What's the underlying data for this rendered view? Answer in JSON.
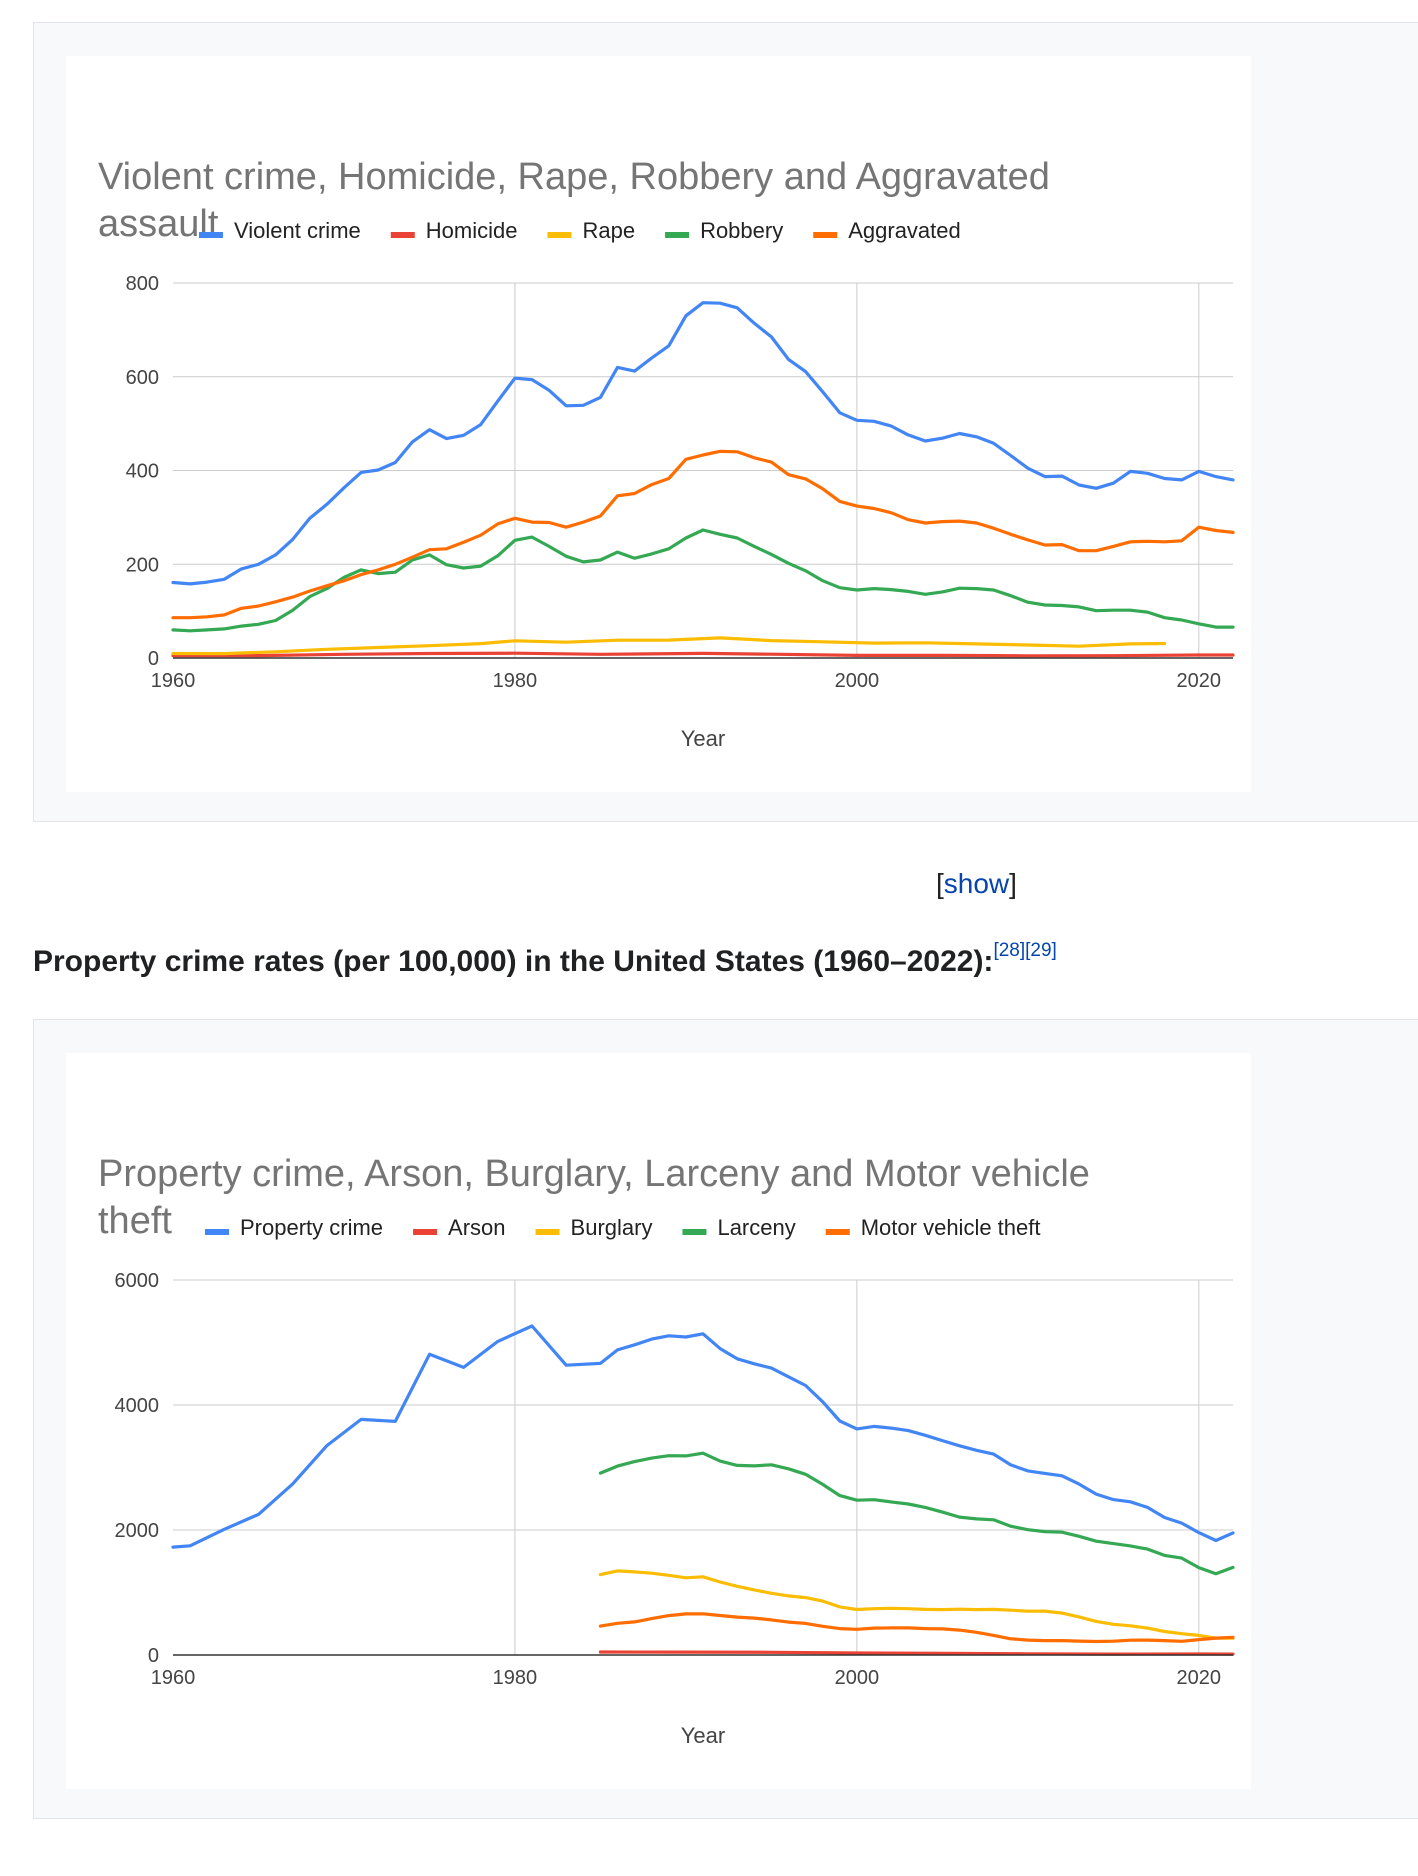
{
  "chart_data": [
    {
      "type": "line",
      "title_lines": [
        "Violent crime, Homicide, Rape, Robbery and Aggravated",
        "assault"
      ],
      "xlabel": "Year",
      "ylabel": "",
      "xlim": [
        1960,
        2022
      ],
      "ylim": [
        0,
        800
      ],
      "x_ticks": [
        "1960",
        "1980",
        "2000",
        "2020"
      ],
      "y_ticks": [
        "0",
        "200",
        "400",
        "600",
        "800"
      ],
      "grid": true,
      "legend_position": "top",
      "series": [
        {
          "name": "Violent crime",
          "color": "#4285f4",
          "x": [
            1960,
            1961,
            1962,
            1963,
            1964,
            1965,
            1966,
            1967,
            1968,
            1969,
            1970,
            1971,
            1972,
            1973,
            1974,
            1975,
            1976,
            1977,
            1978,
            1979,
            1980,
            1981,
            1982,
            1983,
            1984,
            1985,
            1986,
            1987,
            1988,
            1989,
            1990,
            1991,
            1992,
            1993,
            1994,
            1995,
            1996,
            1997,
            1998,
            1999,
            2000,
            2001,
            2002,
            2003,
            2004,
            2005,
            2006,
            2007,
            2008,
            2009,
            2010,
            2011,
            2012,
            2013,
            2014,
            2015,
            2016,
            2017,
            2018,
            2019,
            2020,
            2021,
            2022
          ],
          "values": [
            161,
            158,
            162,
            168,
            190,
            200,
            220,
            253,
            298,
            328,
            363,
            396,
            401,
            417,
            461,
            487,
            468,
            475,
            498,
            548,
            597,
            594,
            571,
            538,
            539,
            556,
            620,
            612,
            640,
            666,
            730,
            758,
            757,
            747,
            714,
            685,
            637,
            611,
            568,
            523,
            507,
            505,
            495,
            476,
            463,
            469,
            479,
            472,
            458,
            432,
            405,
            387,
            388,
            369,
            362,
            373,
            398,
            394,
            383,
            380,
            398,
            387,
            380
          ]
        },
        {
          "name": "Homicide",
          "color": "#ea4335",
          "x": [
            1960,
            1965,
            1970,
            1975,
            1980,
            1985,
            1991,
            1995,
            2000,
            2005,
            2010,
            2015,
            2020,
            2022
          ],
          "values": [
            5.1,
            5.1,
            7.9,
            9.6,
            10.2,
            7.9,
            9.8,
            8.2,
            5.5,
            5.6,
            4.8,
            4.9,
            6.5,
            6.3
          ]
        },
        {
          "name": "Rape",
          "color": "#fbbc04",
          "x": [
            1960,
            1963,
            1966,
            1969,
            1972,
            1975,
            1978,
            1980,
            1983,
            1986,
            1989,
            1992,
            1995,
            1998,
            2001,
            2004,
            2007,
            2010,
            2013,
            2016,
            2018
          ],
          "values": [
            9.6,
            9.4,
            13.2,
            18.5,
            22.5,
            26.3,
            30.8,
            36.8,
            33.7,
            37.9,
            38.1,
            42.8,
            37.1,
            34.5,
            31.8,
            32.4,
            30.0,
            27.7,
            25.2,
            30.0,
            30.9
          ]
        },
        {
          "name": "Robbery",
          "color": "#34a853",
          "x": [
            1960,
            1961,
            1962,
            1963,
            1964,
            1965,
            1966,
            1967,
            1968,
            1969,
            1970,
            1971,
            1972,
            1973,
            1974,
            1975,
            1976,
            1977,
            1978,
            1979,
            1980,
            1981,
            1982,
            1983,
            1984,
            1985,
            1986,
            1987,
            1988,
            1989,
            1990,
            1991,
            1992,
            1993,
            1994,
            1995,
            1996,
            1997,
            1998,
            1999,
            2000,
            2001,
            2002,
            2003,
            2004,
            2005,
            2006,
            2007,
            2008,
            2009,
            2010,
            2011,
            2012,
            2013,
            2014,
            2015,
            2016,
            2017,
            2018,
            2019,
            2020,
            2021,
            2022
          ],
          "values": [
            60,
            58,
            60,
            62,
            68,
            72,
            80,
            102,
            131,
            148,
            172,
            188,
            180,
            183,
            209,
            220,
            199,
            192,
            196,
            218,
            251,
            258,
            238,
            217,
            205,
            209,
            226,
            213,
            222,
            233,
            256,
            273,
            264,
            256,
            238,
            221,
            202,
            186,
            165,
            150,
            145,
            148,
            146,
            142,
            136,
            141,
            149,
            148,
            145,
            133,
            119,
            113,
            112,
            109,
            101,
            102,
            102,
            98,
            86,
            81,
            73,
            66,
            66
          ]
        },
        {
          "name": "Aggravated",
          "color": "#ff6d01",
          "x": [
            1960,
            1961,
            1962,
            1963,
            1964,
            1965,
            1966,
            1967,
            1968,
            1969,
            1970,
            1971,
            1972,
            1973,
            1974,
            1975,
            1976,
            1977,
            1978,
            1979,
            1980,
            1981,
            1982,
            1983,
            1984,
            1985,
            1986,
            1987,
            1988,
            1989,
            1990,
            1991,
            1992,
            1993,
            1994,
            1995,
            1996,
            1997,
            1998,
            1999,
            2000,
            2001,
            2002,
            2003,
            2004,
            2005,
            2006,
            2007,
            2008,
            2009,
            2010,
            2011,
            2012,
            2013,
            2014,
            2015,
            2016,
            2017,
            2018,
            2019,
            2020,
            2021,
            2022
          ],
          "values": [
            86,
            86,
            88,
            92,
            106,
            111,
            120,
            130,
            143,
            154,
            165,
            178,
            188,
            200,
            215,
            231,
            233,
            247,
            262,
            286,
            298,
            290,
            289,
            279,
            290,
            303,
            346,
            351,
            370,
            383,
            424,
            433,
            441,
            440,
            427,
            418,
            391,
            382,
            361,
            334,
            324,
            319,
            310,
            295,
            288,
            291,
            292,
            288,
            277,
            264,
            252,
            241,
            242,
            229,
            229,
            238,
            248,
            249,
            248,
            250,
            279,
            272,
            268
          ]
        }
      ]
    },
    {
      "type": "line",
      "title_lines": [
        "Property crime, Arson, Burglary, Larceny and Motor vehicle",
        "theft"
      ],
      "xlabel": "Year",
      "ylabel": "",
      "xlim": [
        1960,
        2022
      ],
      "ylim": [
        0,
        6000
      ],
      "x_ticks": [
        "1960",
        "1980",
        "2000",
        "2020"
      ],
      "y_ticks": [
        "0",
        "2000",
        "4000",
        "6000"
      ],
      "grid": true,
      "legend_position": "top",
      "series": [
        {
          "name": "Property crime",
          "color": "#4285f4",
          "x": [
            1960,
            1961,
            1963,
            1965,
            1967,
            1969,
            1971,
            1973,
            1975,
            1977,
            1979,
            1981,
            1983,
            1985,
            1986,
            1987,
            1988,
            1989,
            1990,
            1991,
            1992,
            1993,
            1994,
            1995,
            1996,
            1997,
            1998,
            1999,
            2000,
            2001,
            2002,
            2003,
            2004,
            2005,
            2006,
            2007,
            2008,
            2009,
            2010,
            2011,
            2012,
            2013,
            2014,
            2015,
            2016,
            2017,
            2018,
            2019,
            2020,
            2021,
            2022
          ],
          "values": [
            1726,
            1747,
            2012,
            2249,
            2737,
            3351,
            3769,
            3738,
            4811,
            4601,
            5017,
            5264,
            4637,
            4666,
            4881,
            4963,
            5054,
            5107,
            5088,
            5140,
            4903,
            4740,
            4660,
            4591,
            4451,
            4312,
            4052,
            3744,
            3618,
            3658,
            3631,
            3591,
            3515,
            3431,
            3347,
            3276,
            3214,
            3041,
            2946,
            2905,
            2868,
            2734,
            2574,
            2487,
            2451,
            2362,
            2200,
            2110,
            1958,
            1832,
            1954
          ]
        },
        {
          "name": "Arson",
          "color": "#ea4335",
          "x": [
            1985,
            1990,
            1995,
            2000,
            2005,
            2010,
            2015,
            2020,
            2022
          ],
          "values": [
            48,
            46,
            43,
            32,
            25,
            20,
            15,
            16,
            14
          ]
        },
        {
          "name": "Burglary",
          "color": "#fbbc04",
          "x": [
            1985,
            1986,
            1987,
            1988,
            1989,
            1990,
            1991,
            1992,
            1993,
            1994,
            1995,
            1996,
            1997,
            1998,
            1999,
            2000,
            2001,
            2002,
            2003,
            2004,
            2005,
            2006,
            2007,
            2008,
            2009,
            2010,
            2011,
            2012,
            2013,
            2014,
            2015,
            2016,
            2017,
            2018,
            2019,
            2020,
            2021,
            2022
          ],
          "values": [
            1287,
            1345,
            1330,
            1309,
            1276,
            1236,
            1252,
            1168,
            1099,
            1042,
            987,
            945,
            919,
            863,
            770,
            728,
            741,
            747,
            741,
            730,
            726,
            733,
            726,
            730,
            717,
            701,
            702,
            670,
            610,
            537,
            491,
            468,
            430,
            376,
            341,
            314,
            270,
            269
          ]
        },
        {
          "name": "Larceny",
          "color": "#34a853",
          "x": [
            1985,
            1986,
            1987,
            1988,
            1989,
            1990,
            1991,
            1992,
            1993,
            1994,
            1995,
            1996,
            1997,
            1998,
            1999,
            2000,
            2001,
            2002,
            2003,
            2004,
            2005,
            2006,
            2007,
            2008,
            2009,
            2010,
            2011,
            2012,
            2013,
            2014,
            2015,
            2016,
            2017,
            2018,
            2019,
            2020,
            2021,
            2022
          ],
          "values": [
            2911,
            3022,
            3095,
            3151,
            3189,
            3185,
            3229,
            3103,
            3033,
            3026,
            3043,
            2980,
            2891,
            2729,
            2550,
            2477,
            2485,
            2450,
            2416,
            2362,
            2287,
            2207,
            2178,
            2164,
            2061,
            2005,
            1974,
            1965,
            1899,
            1821,
            1783,
            1745,
            1694,
            1594,
            1550,
            1398,
            1301,
            1402
          ]
        },
        {
          "name": "Motor vehicle theft",
          "color": "#ff6d01",
          "x": [
            1985,
            1986,
            1987,
            1988,
            1989,
            1990,
            1991,
            1992,
            1993,
            1994,
            1995,
            1996,
            1997,
            1998,
            1999,
            2000,
            2001,
            2002,
            2003,
            2004,
            2005,
            2006,
            2007,
            2008,
            2009,
            2010,
            2011,
            2012,
            2013,
            2014,
            2015,
            2016,
            2017,
            2018,
            2019,
            2020,
            2021,
            2022
          ],
          "values": [
            462,
            508,
            530,
            583,
            630,
            658,
            659,
            632,
            606,
            591,
            561,
            526,
            506,
            460,
            422,
            412,
            431,
            433,
            434,
            422,
            417,
            398,
            363,
            314,
            259,
            239,
            230,
            230,
            222,
            216,
            221,
            237,
            238,
            230,
            220,
            246,
            270,
            283
          ]
        }
      ]
    }
  ],
  "toggle": {
    "bracket_open": "[",
    "link": "show",
    "bracket_close": "]"
  },
  "section_caption": {
    "text": "Property crime rates (per 100,000) in the United States (1960–2022):",
    "ref1": "[28]",
    "ref2": "[29]"
  }
}
